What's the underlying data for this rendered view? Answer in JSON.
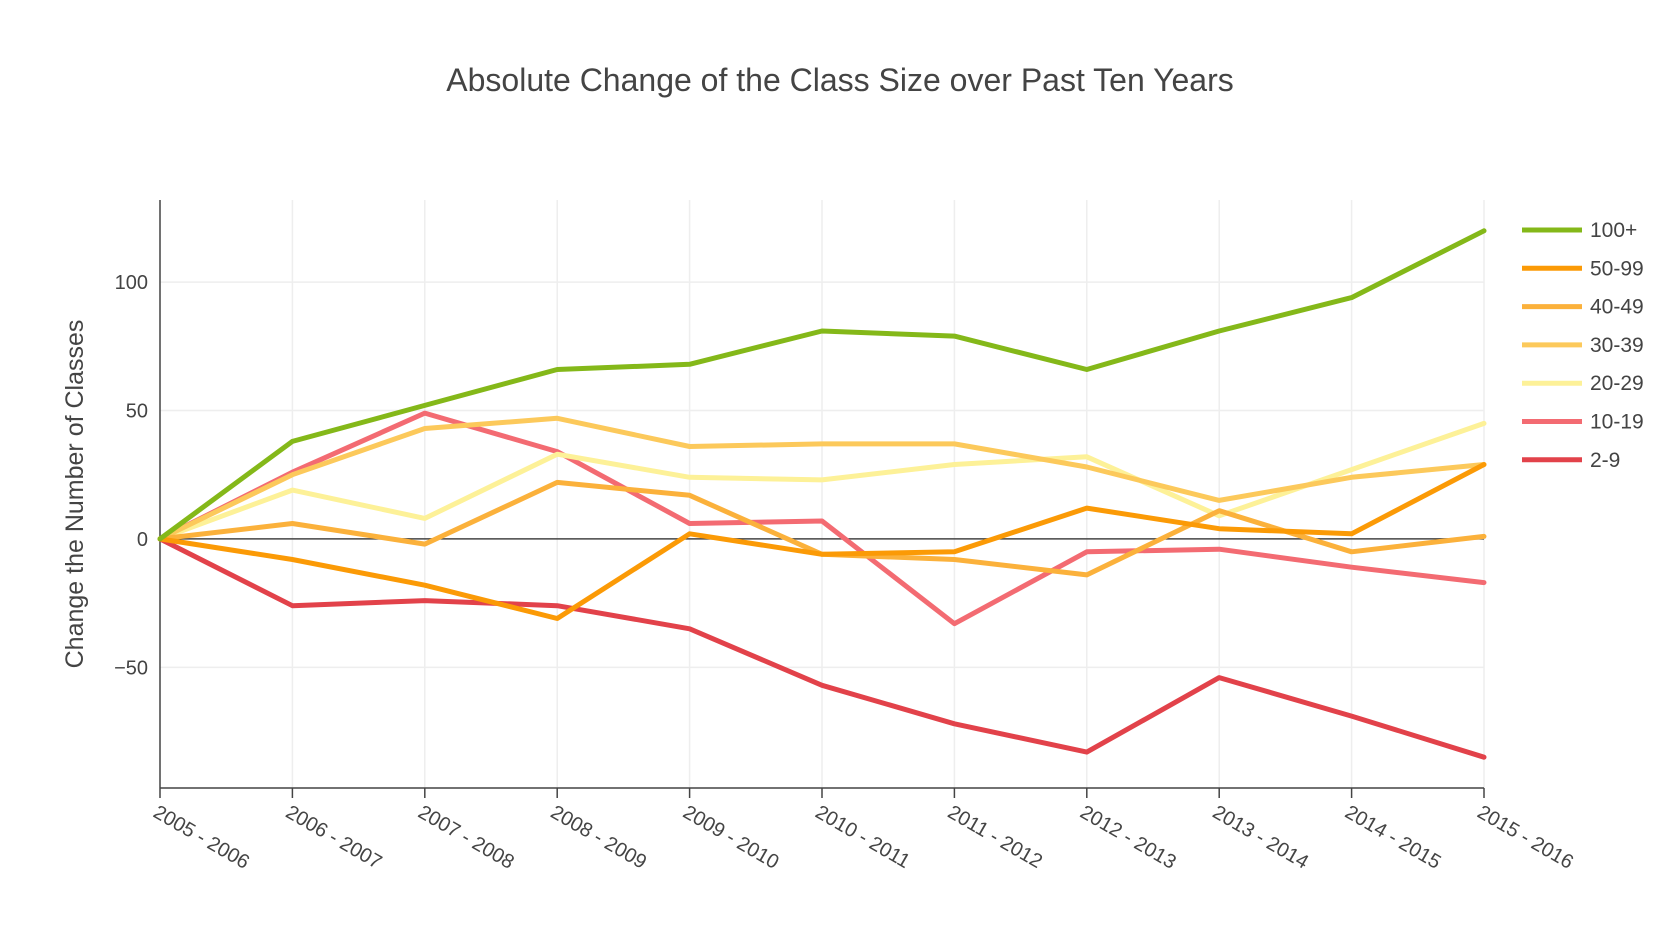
{
  "chart_data": {
    "type": "line",
    "title": "Absolute Change of the Class Size over Past Ten Years",
    "xlabel": "",
    "ylabel": "Change the Number of Classes",
    "categories": [
      "2005 - 2006",
      "2006 - 2007",
      "2007 - 2008",
      "2008 - 2009",
      "2009 - 2010",
      "2010 - 2011",
      "2011 - 2012",
      "2012 - 2013",
      "2013 - 2014",
      "2014 - 2015",
      "2015 - 2016"
    ],
    "ylim": [
      -97,
      132
    ],
    "yticks": [
      -50,
      0,
      50,
      100
    ],
    "ytick_labels": [
      "−50",
      "0",
      "50",
      "100"
    ],
    "grid": true,
    "zero_line": true,
    "legend_position": "right",
    "series": [
      {
        "name": "100+",
        "color": "#84b819",
        "values": [
          0,
          38,
          52,
          66,
          68,
          81,
          79,
          66,
          81,
          94,
          120
        ]
      },
      {
        "name": "50-99",
        "color": "#fb9a06",
        "values": [
          0,
          -8,
          -18,
          -31,
          2,
          -6,
          -5,
          12,
          4,
          2,
          29
        ]
      },
      {
        "name": "40-49",
        "color": "#fbb13b",
        "values": [
          0,
          6,
          -2,
          22,
          17,
          -6,
          -8,
          -14,
          11,
          -5,
          1
        ]
      },
      {
        "name": "30-39",
        "color": "#fcc95b",
        "values": [
          0,
          25,
          43,
          47,
          36,
          37,
          37,
          28,
          15,
          24,
          29
        ]
      },
      {
        "name": "20-29",
        "color": "#fdf198",
        "values": [
          0,
          19,
          8,
          33,
          24,
          23,
          29,
          32,
          9,
          27,
          45
        ]
      },
      {
        "name": "10-19",
        "color": "#f36b72",
        "values": [
          0,
          26,
          49,
          34,
          6,
          7,
          -33,
          -5,
          -4,
          -11,
          -17
        ]
      },
      {
        "name": "2-9",
        "color": "#e2424a",
        "values": [
          0,
          -26,
          -24,
          -26,
          -35,
          -57,
          -72,
          -83,
          -54,
          -69,
          -85
        ]
      }
    ]
  }
}
